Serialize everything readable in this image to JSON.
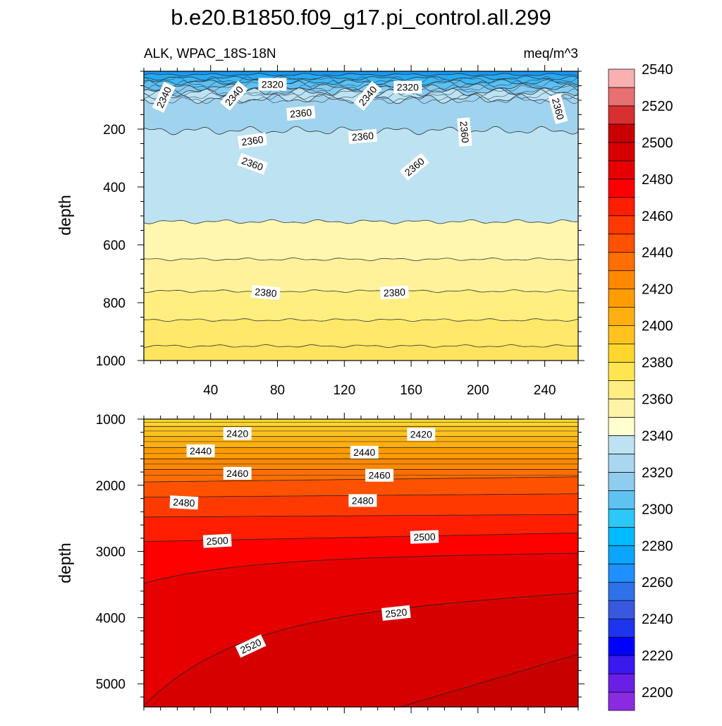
{
  "chart_data": {
    "type": "contour",
    "title": "b.e20.B1850.f09_g17.pi_control.all.299",
    "subtitle_left": "ALK, WPAC_18S-18N",
    "subtitle_right": "meq/m^3",
    "panels": [
      {
        "name": "upper",
        "ylabel": "depth",
        "y_range": [
          0,
          1000
        ],
        "y_reversed": true,
        "x_range": [
          0,
          260
        ],
        "x_ticks": [
          "40",
          "80",
          "120",
          "160",
          "200",
          "240"
        ],
        "y_ticks": [
          "200",
          "400",
          "600",
          "800",
          "1000"
        ],
        "contour_labels": [
          {
            "text": "2340",
            "x": 12,
            "depth": 90,
            "angle": -65
          },
          {
            "text": "2340",
            "x": 54,
            "depth": 85,
            "angle": -50
          },
          {
            "text": "2320",
            "x": 77,
            "depth": 45,
            "angle": 0
          },
          {
            "text": "2340",
            "x": 134,
            "depth": 85,
            "angle": -50
          },
          {
            "text": "2320",
            "x": 158,
            "depth": 55,
            "angle": 0
          },
          {
            "text": "2360",
            "x": 248,
            "depth": 130,
            "angle": 75
          },
          {
            "text": "2360",
            "x": 94,
            "depth": 145,
            "angle": -5
          },
          {
            "text": "2360",
            "x": 131,
            "depth": 225,
            "angle": -5
          },
          {
            "text": "2360",
            "x": 192,
            "depth": 210,
            "angle": 85
          },
          {
            "text": "2360",
            "x": 65,
            "depth": 240,
            "angle": -8
          },
          {
            "text": "2360",
            "x": 65,
            "depth": 320,
            "angle": 20
          },
          {
            "text": "2360",
            "x": 162,
            "depth": 330,
            "angle": -40
          },
          {
            "text": "2380",
            "x": 73,
            "depth": 765,
            "angle": 5
          },
          {
            "text": "2380",
            "x": 150,
            "depth": 765,
            "angle": -3
          }
        ]
      },
      {
        "name": "lower",
        "ylabel": "depth",
        "y_range": [
          1000,
          5350
        ],
        "y_reversed": true,
        "x_range": [
          0,
          260
        ],
        "y_ticks": [
          "1000",
          "2000",
          "3000",
          "4000",
          "5000"
        ],
        "contour_labels": [
          {
            "text": "2420",
            "x": 56,
            "depth": 1220,
            "angle": 0
          },
          {
            "text": "2420",
            "x": 166,
            "depth": 1230,
            "angle": 0
          },
          {
            "text": "2440",
            "x": 34,
            "depth": 1480,
            "angle": 0
          },
          {
            "text": "2440",
            "x": 132,
            "depth": 1500,
            "angle": 0
          },
          {
            "text": "2460",
            "x": 56,
            "depth": 1820,
            "angle": 0
          },
          {
            "text": "2460",
            "x": 141,
            "depth": 1850,
            "angle": 0
          },
          {
            "text": "2480",
            "x": 24,
            "depth": 2260,
            "angle": 3
          },
          {
            "text": "2480",
            "x": 131,
            "depth": 2230,
            "angle": 0
          },
          {
            "text": "2500",
            "x": 44,
            "depth": 2840,
            "angle": -3
          },
          {
            "text": "2500",
            "x": 168,
            "depth": 2780,
            "angle": -2
          },
          {
            "text": "2520",
            "x": 151,
            "depth": 3930,
            "angle": -6
          },
          {
            "text": "2520",
            "x": 64,
            "depth": 4430,
            "angle": -25
          }
        ]
      }
    ],
    "colorbar": {
      "levels": [
        "2200",
        "2220",
        "2240",
        "2260",
        "2280",
        "2300",
        "2320",
        "2340",
        "2360",
        "2380",
        "2400",
        "2420",
        "2440",
        "2460",
        "2480",
        "2500",
        "2520",
        "2540"
      ],
      "colors": [
        "#8a2be2",
        "#6a1fe6",
        "#3a18f0",
        "#0000ff",
        "#1d35ec",
        "#3858e0",
        "#2e72ea",
        "#1e90ff",
        "#0aa5ff",
        "#00bbff",
        "#2bc8f8",
        "#5fc3f2",
        "#8fcdee",
        "#a8d7ef",
        "#bde3f3",
        "#ffffd0",
        "#fff3a8",
        "#ffee80",
        "#ffe650",
        "#ffd62e",
        "#ffc21e",
        "#ffb010",
        "#ff9c00",
        "#ff8800",
        "#ff6e00",
        "#ff5200",
        "#ff3a00",
        "#ff1e00",
        "#ff0000",
        "#e60000",
        "#d70000",
        "#c90000",
        "#d83030",
        "#e87070",
        "#f8b0b0"
      ]
    },
    "field_colors": {
      "upper_bands": [
        "#1898f5",
        "#24aaf5",
        "#3ab7f4",
        "#5cc1f2",
        "#85cbef",
        "#bde3f3",
        "#a0d3ee",
        "#bde3f3",
        "#fff7b0",
        "#fff29a",
        "#ffee80",
        "#ffe86a",
        "#ffe460"
      ],
      "lower_bands": [
        "#ffd62e",
        "#ffc21e",
        "#ffb010",
        "#ff9c00",
        "#ff8800",
        "#ff6e00",
        "#ff5200",
        "#ff3a00",
        "#ff1e00",
        "#ff0000",
        "#e60000",
        "#d70000",
        "#c90000",
        "#d83030"
      ]
    }
  }
}
